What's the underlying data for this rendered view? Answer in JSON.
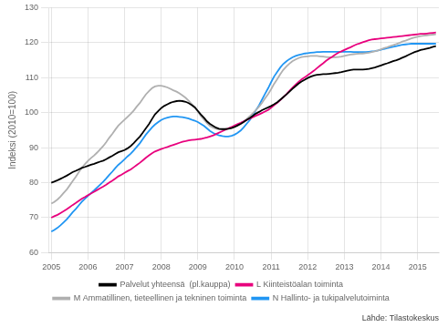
{
  "chart_data": {
    "type": "line",
    "y_label": "Indeksi (2010=100)",
    "annotations": [
      "Lähde: Tilastokeskus"
    ],
    "xlim": [
      2004.92,
      2015.58
    ],
    "ylim": [
      60,
      130
    ],
    "xticks": [
      2005,
      2006,
      2007,
      2008,
      2009,
      2010,
      2011,
      2012,
      2013,
      2014,
      2015
    ],
    "yticks": [
      60,
      70,
      80,
      90,
      100,
      110,
      120,
      130
    ],
    "grid": true,
    "legend": "bottom",
    "x": [
      2005.0,
      2005.08,
      2005.17,
      2005.25,
      2005.33,
      2005.42,
      2005.5,
      2005.58,
      2005.67,
      2005.75,
      2005.83,
      2005.92,
      2006.0,
      2006.08,
      2006.17,
      2006.25,
      2006.33,
      2006.42,
      2006.5,
      2006.58,
      2006.67,
      2006.75,
      2006.83,
      2006.92,
      2007.0,
      2007.08,
      2007.17,
      2007.25,
      2007.33,
      2007.42,
      2007.5,
      2007.58,
      2007.67,
      2007.75,
      2007.83,
      2007.92,
      2008.0,
      2008.08,
      2008.17,
      2008.25,
      2008.33,
      2008.42,
      2008.5,
      2008.58,
      2008.67,
      2008.75,
      2008.83,
      2008.92,
      2009.0,
      2009.08,
      2009.17,
      2009.25,
      2009.33,
      2009.42,
      2009.5,
      2009.58,
      2009.67,
      2009.75,
      2009.83,
      2009.92,
      2010.0,
      2010.08,
      2010.17,
      2010.25,
      2010.33,
      2010.42,
      2010.5,
      2010.58,
      2010.67,
      2010.75,
      2010.83,
      2010.92,
      2011.0,
      2011.08,
      2011.17,
      2011.25,
      2011.33,
      2011.42,
      2011.5,
      2011.58,
      2011.67,
      2011.75,
      2011.83,
      2011.92,
      2012.0,
      2012.08,
      2012.17,
      2012.25,
      2012.33,
      2012.42,
      2012.5,
      2012.58,
      2012.67,
      2012.75,
      2012.83,
      2012.92,
      2013.0,
      2013.08,
      2013.17,
      2013.25,
      2013.33,
      2013.42,
      2013.5,
      2013.58,
      2013.67,
      2013.75,
      2013.83,
      2013.92,
      2014.0,
      2014.08,
      2014.17,
      2014.25,
      2014.33,
      2014.42,
      2014.5,
      2014.58,
      2014.67,
      2014.75,
      2014.83,
      2014.92,
      2015.0,
      2015.08,
      2015.17,
      2015.25,
      2015.33,
      2015.42,
      2015.5
    ],
    "series": [
      {
        "name": "Palvelut yhteensä  (pl.kauppa)",
        "color": "#000000",
        "values": [
          80.0,
          80.3,
          80.7,
          81.1,
          81.5,
          82.0,
          82.5,
          83.0,
          83.4,
          83.8,
          84.2,
          84.5,
          84.8,
          85.1,
          85.4,
          85.7,
          86.0,
          86.3,
          86.7,
          87.2,
          87.7,
          88.2,
          88.7,
          89.0,
          89.3,
          89.8,
          90.5,
          91.3,
          92.2,
          93.2,
          94.3,
          95.5,
          96.8,
          98.2,
          99.5,
          100.5,
          101.3,
          101.9,
          102.4,
          102.8,
          103.1,
          103.3,
          103.4,
          103.3,
          103.1,
          102.7,
          102.2,
          101.5,
          100.5,
          99.5,
          98.5,
          97.5,
          96.8,
          96.2,
          95.7,
          95.4,
          95.3,
          95.3,
          95.4,
          95.6,
          95.9,
          96.3,
          96.8,
          97.3,
          97.9,
          98.5,
          99.1,
          99.7,
          100.2,
          100.7,
          101.1,
          101.5,
          101.9,
          102.4,
          103.0,
          103.7,
          104.4,
          105.2,
          106.0,
          106.8,
          107.6,
          108.3,
          108.9,
          109.4,
          109.9,
          110.3,
          110.6,
          110.8,
          110.9,
          111.0,
          111.0,
          111.1,
          111.2,
          111.3,
          111.4,
          111.6,
          111.8,
          112.0,
          112.2,
          112.3,
          112.3,
          112.3,
          112.3,
          112.4,
          112.5,
          112.7,
          112.9,
          113.2,
          113.5,
          113.8,
          114.1,
          114.4,
          114.7,
          115.0,
          115.3,
          115.7,
          116.1,
          116.5,
          116.9,
          117.3,
          117.6,
          117.9,
          118.1,
          118.3,
          118.5,
          118.8,
          119.0
        ]
      },
      {
        "name": "L Kiinteistöalan toiminta",
        "color": "#e8007d",
        "values": [
          70.0,
          70.4,
          70.8,
          71.3,
          71.8,
          72.4,
          73.0,
          73.6,
          74.2,
          74.8,
          75.4,
          75.9,
          76.4,
          76.9,
          77.4,
          77.9,
          78.4,
          78.9,
          79.4,
          80.0,
          80.6,
          81.2,
          81.8,
          82.3,
          82.8,
          83.3,
          83.8,
          84.4,
          85.0,
          85.7,
          86.4,
          87.1,
          87.8,
          88.4,
          88.9,
          89.3,
          89.6,
          89.9,
          90.2,
          90.5,
          90.8,
          91.1,
          91.4,
          91.7,
          91.9,
          92.1,
          92.2,
          92.3,
          92.4,
          92.5,
          92.7,
          92.9,
          93.2,
          93.5,
          93.9,
          94.3,
          94.7,
          95.1,
          95.5,
          95.9,
          96.3,
          96.7,
          97.1,
          97.5,
          97.9,
          98.3,
          98.7,
          99.1,
          99.5,
          99.9,
          100.3,
          100.8,
          101.4,
          102.1,
          102.8,
          103.6,
          104.4,
          105.3,
          106.2,
          107.1,
          108.0,
          108.8,
          109.5,
          110.1,
          110.7,
          111.3,
          112.0,
          112.7,
          113.4,
          114.1,
          114.8,
          115.4,
          116.0,
          116.6,
          117.1,
          117.5,
          117.9,
          118.3,
          118.7,
          119.1,
          119.5,
          119.8,
          120.1,
          120.4,
          120.7,
          120.9,
          121.0,
          121.1,
          121.2,
          121.3,
          121.4,
          121.5,
          121.6,
          121.7,
          121.8,
          121.9,
          122.0,
          122.1,
          122.2,
          122.3,
          122.4,
          122.5,
          122.5,
          122.6,
          122.7,
          122.8,
          122.9
        ]
      },
      {
        "name": "M Ammatillinen, tieteellinen ja tekninen toiminta",
        "color": "#b0b0b0",
        "values": [
          74.0,
          74.5,
          75.2,
          76.0,
          77.0,
          78.0,
          79.2,
          80.4,
          81.7,
          83.0,
          84.2,
          85.3,
          86.2,
          87.0,
          87.8,
          88.6,
          89.5,
          90.5,
          91.6,
          92.8,
          94.0,
          95.2,
          96.3,
          97.2,
          98.0,
          98.8,
          99.7,
          100.6,
          101.7,
          102.8,
          104.0,
          105.2,
          106.2,
          107.0,
          107.5,
          107.7,
          107.7,
          107.5,
          107.2,
          106.8,
          106.4,
          106.0,
          105.5,
          104.9,
          104.2,
          103.4,
          102.5,
          101.5,
          100.3,
          99.1,
          98.0,
          97.0,
          96.2,
          95.7,
          95.4,
          95.2,
          95.2,
          95.3,
          95.5,
          95.7,
          96.0,
          96.4,
          96.9,
          97.5,
          98.2,
          99.0,
          99.8,
          100.7,
          101.7,
          102.8,
          104.0,
          105.3,
          106.7,
          108.2,
          109.6,
          111.0,
          112.2,
          113.2,
          114.0,
          114.7,
          115.2,
          115.6,
          115.9,
          116.0,
          116.1,
          116.2,
          116.2,
          116.2,
          116.1,
          116.0,
          115.9,
          115.8,
          115.8,
          115.8,
          115.9,
          116.0,
          116.2,
          116.4,
          116.6,
          116.7,
          116.8,
          116.9,
          116.9,
          117.0,
          117.1,
          117.3,
          117.5,
          117.8,
          118.1,
          118.4,
          118.7,
          119.0,
          119.3,
          119.6,
          119.9,
          120.3,
          120.6,
          120.9,
          121.2,
          121.5,
          121.7,
          121.9,
          122.0,
          122.1,
          122.2,
          122.3,
          122.4
        ]
      },
      {
        "name": "N Hallinto- ja tukipalvelutoiminta",
        "color": "#2196f3",
        "values": [
          66.0,
          66.5,
          67.1,
          67.8,
          68.6,
          69.5,
          70.5,
          71.5,
          72.5,
          73.5,
          74.5,
          75.4,
          76.2,
          77.0,
          77.8,
          78.6,
          79.4,
          80.3,
          81.2,
          82.2,
          83.2,
          84.2,
          85.1,
          85.9,
          86.7,
          87.5,
          88.3,
          89.2,
          90.2,
          91.3,
          92.5,
          93.7,
          94.8,
          95.8,
          96.6,
          97.3,
          97.9,
          98.3,
          98.6,
          98.8,
          98.9,
          98.9,
          98.8,
          98.7,
          98.5,
          98.3,
          98.0,
          97.7,
          97.3,
          96.8,
          96.2,
          95.5,
          94.8,
          94.2,
          93.8,
          93.5,
          93.3,
          93.2,
          93.2,
          93.4,
          93.7,
          94.2,
          94.9,
          95.8,
          96.8,
          97.9,
          99.2,
          100.6,
          102.1,
          103.7,
          105.3,
          107.0,
          108.7,
          110.3,
          111.7,
          112.9,
          113.9,
          114.7,
          115.3,
          115.8,
          116.2,
          116.5,
          116.7,
          116.9,
          117.0,
          117.1,
          117.2,
          117.3,
          117.3,
          117.4,
          117.4,
          117.4,
          117.4,
          117.4,
          117.4,
          117.4,
          117.4,
          117.4,
          117.4,
          117.3,
          117.3,
          117.3,
          117.3,
          117.3,
          117.4,
          117.5,
          117.6,
          117.8,
          118.0,
          118.2,
          118.4,
          118.6,
          118.8,
          119.0,
          119.2,
          119.4,
          119.5,
          119.6,
          119.7,
          119.7,
          119.7,
          119.7,
          119.7,
          119.7,
          119.7,
          119.7,
          119.7
        ]
      }
    ]
  }
}
